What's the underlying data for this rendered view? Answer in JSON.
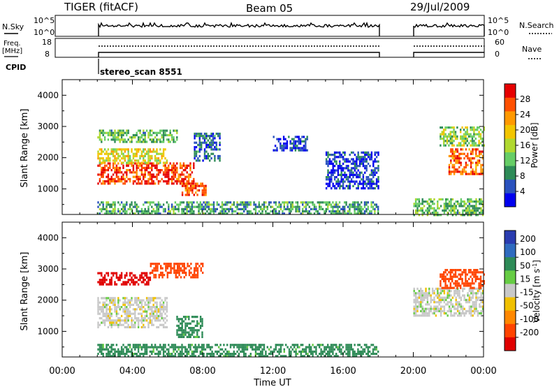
{
  "header": {
    "radar": "TIGER (fitACF)",
    "beam": "Beam 05",
    "date": "29/Jul/2009"
  },
  "summary_panels": {
    "nsky": {
      "label": "N.Sky",
      "ticks": [
        "10^5",
        "10^0"
      ]
    },
    "nsearch": {
      "label": "N.Search",
      "ticks": [
        "10^5",
        "10^0"
      ]
    },
    "freq": {
      "label_line1": "Freq.",
      "label_line2": "[MHz]",
      "ticks": [
        "18",
        "8"
      ]
    },
    "nave": {
      "label": "Nave",
      "ticks": [
        "60",
        "0"
      ]
    },
    "cpid": {
      "label": "CPID",
      "value": "stereo_scan 8551"
    }
  },
  "chart_data": [
    {
      "type": "heatmap",
      "name": "power-panel",
      "xlabel": "",
      "ylabel": "Slant Range [km]",
      "xlim": [
        0,
        24
      ],
      "ylim": [
        180,
        4500
      ],
      "y_ticks": [
        "1000",
        "2000",
        "3000",
        "4000"
      ],
      "y_tick_values": [
        1000,
        2000,
        3000,
        4000
      ],
      "colorbar": {
        "label": "Power [dB]",
        "ticks": [
          "4",
          "8",
          "12",
          "16",
          "20",
          "24",
          "28"
        ],
        "tick_values": [
          4,
          8,
          12,
          16,
          20,
          24,
          28
        ],
        "range": [
          0,
          32
        ],
        "colors": [
          "#0000ee",
          "#2a52be",
          "#2e8b57",
          "#66cd66",
          "#b0d830",
          "#f2c500",
          "#ff9900",
          "#ff5000",
          "#e60000"
        ]
      },
      "regions": [
        {
          "t": [
            2.0,
            7.5
          ],
          "r": [
            1200,
            1850
          ],
          "value": 28
        },
        {
          "t": [
            2.0,
            6.0
          ],
          "r": [
            1850,
            2300
          ],
          "value": 18
        },
        {
          "t": [
            2.0,
            6.5
          ],
          "r": [
            2500,
            2900
          ],
          "value": 12
        },
        {
          "t": [
            6.8,
            8.2
          ],
          "r": [
            800,
            1200
          ],
          "value": 26
        },
        {
          "t": [
            7.5,
            9.0
          ],
          "r": [
            1900,
            2800
          ],
          "value": 6
        },
        {
          "t": [
            2.0,
            18.0
          ],
          "r": [
            180,
            600
          ],
          "value": 10
        },
        {
          "t": [
            12.0,
            14.0
          ],
          "r": [
            2200,
            2700
          ],
          "value": 4
        },
        {
          "t": [
            15.0,
            18.0
          ],
          "r": [
            1000,
            2200
          ],
          "value": 4
        },
        {
          "t": [
            20.0,
            24.0
          ],
          "r": [
            180,
            700
          ],
          "value": 12
        },
        {
          "t": [
            22.0,
            24.0
          ],
          "r": [
            1500,
            2300
          ],
          "value": 26
        },
        {
          "t": [
            21.5,
            24.0
          ],
          "r": [
            2400,
            3000
          ],
          "value": 14
        }
      ]
    },
    {
      "type": "heatmap",
      "name": "velocity-panel",
      "xlabel": "Time UT",
      "ylabel": "Slant Range [km]",
      "xlim": [
        0,
        24
      ],
      "ylim": [
        180,
        4500
      ],
      "x_ticks": [
        "00:00",
        "04:00",
        "08:00",
        "12:00",
        "16:00",
        "20:00",
        "00:00"
      ],
      "x_tick_values": [
        0,
        4,
        8,
        12,
        16,
        20,
        24
      ],
      "y_ticks": [
        "1000",
        "2000",
        "3000",
        "4000"
      ],
      "y_tick_values": [
        1000,
        2000,
        3000,
        4000
      ],
      "colorbar": {
        "label": "Velocity [m s^-1]",
        "ticks": [
          "200",
          "100",
          "50",
          "15",
          "-15",
          "-50",
          "-100",
          "-200"
        ],
        "tick_values": [
          200,
          100,
          50,
          15,
          -15,
          -50,
          -100,
          -200
        ],
        "colors": [
          "#2a3cb0",
          "#2f6bbf",
          "#2e8b57",
          "#66cc44",
          "#c8c8c8",
          "#f0c000",
          "#ff8800",
          "#ff4400",
          "#e00000"
        ]
      },
      "regions": [
        {
          "t": [
            2.0,
            6.0
          ],
          "r": [
            1100,
            2100
          ],
          "value": 0
        },
        {
          "t": [
            2.0,
            5.0
          ],
          "r": [
            2500,
            2900
          ],
          "value": -200
        },
        {
          "t": [
            5.0,
            8.0
          ],
          "r": [
            2700,
            3200
          ],
          "value": -100
        },
        {
          "t": [
            6.5,
            8.0
          ],
          "r": [
            800,
            1500
          ],
          "value": 50
        },
        {
          "t": [
            2.0,
            18.0
          ],
          "r": [
            180,
            600
          ],
          "value": 50
        },
        {
          "t": [
            20.0,
            24.0
          ],
          "r": [
            1500,
            2400
          ],
          "value": 0
        },
        {
          "t": [
            21.5,
            24.0
          ],
          "r": [
            2400,
            3000
          ],
          "value": -100
        }
      ]
    }
  ]
}
